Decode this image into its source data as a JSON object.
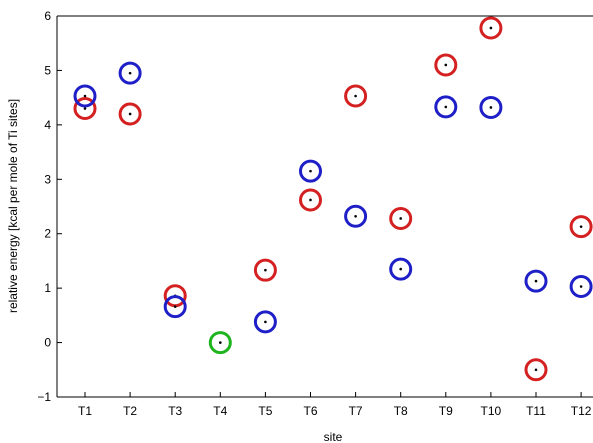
{
  "chart_data": {
    "type": "scatter",
    "title": "",
    "xlabel": "site",
    "ylabel": "relative energy [kcal per mole of Ti sites]",
    "ylim": [
      -1,
      6
    ],
    "yticks": [
      "−1",
      "0",
      "1",
      "2",
      "3",
      "4",
      "5",
      "6"
    ],
    "categories": [
      "T1",
      "T2",
      "T3",
      "T4",
      "T5",
      "T6",
      "T7",
      "T8",
      "T9",
      "T10",
      "T11",
      "T12"
    ],
    "grid": false,
    "legend": "none",
    "series": [
      {
        "color": "#d42020",
        "points": [
          {
            "x": "T1",
            "y": 4.3
          },
          {
            "x": "T2",
            "y": 4.2
          },
          {
            "x": "T3",
            "y": 0.86
          },
          {
            "x": "T5",
            "y": 1.33
          },
          {
            "x": "T6",
            "y": 2.62
          },
          {
            "x": "T7",
            "y": 4.53
          },
          {
            "x": "T8",
            "y": 2.28
          },
          {
            "x": "T9",
            "y": 5.1
          },
          {
            "x": "T10",
            "y": 5.78
          },
          {
            "x": "T11",
            "y": -0.5
          },
          {
            "x": "T12",
            "y": 2.13
          }
        ]
      },
      {
        "color": "#1f1fc8",
        "points": [
          {
            "x": "T1",
            "y": 4.53
          },
          {
            "x": "T2",
            "y": 4.95
          },
          {
            "x": "T3",
            "y": 0.66
          },
          {
            "x": "T5",
            "y": 0.38
          },
          {
            "x": "T6",
            "y": 3.15
          },
          {
            "x": "T7",
            "y": 2.32
          },
          {
            "x": "T8",
            "y": 1.35
          },
          {
            "x": "T9",
            "y": 4.33
          },
          {
            "x": "T10",
            "y": 4.32
          },
          {
            "x": "T11",
            "y": 1.13
          },
          {
            "x": "T12",
            "y": 1.03
          }
        ]
      },
      {
        "color": "#1eb41e",
        "points": [
          {
            "x": "T4",
            "y": 0.0
          }
        ]
      }
    ]
  }
}
